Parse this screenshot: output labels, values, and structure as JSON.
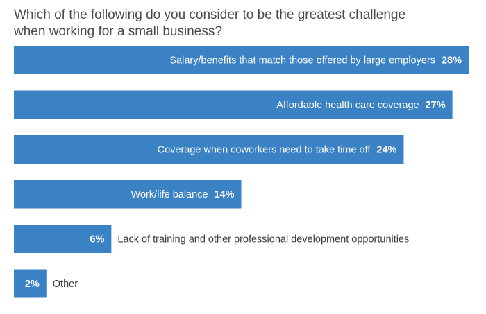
{
  "chart_data": {
    "type": "bar",
    "orientation": "horizontal",
    "title": "Which of the following do you consider to be the greatest challenge when working for a small business?",
    "xlabel": "",
    "ylabel": "",
    "xlim": [
      0,
      28
    ],
    "grid": false,
    "bar_color": "#3b82c4",
    "categories": [
      "Salary/benefits that match those offered by large employers",
      "Affordable health care coverage",
      "Coverage when coworkers need to take time off",
      "Work/life balance",
      "Lack of training and other professional development opportunities",
      "Other"
    ],
    "values": [
      28,
      27,
      24,
      14,
      6,
      2
    ],
    "value_labels": [
      "28%",
      "27%",
      "24%",
      "14%",
      "6%",
      "2%"
    ]
  }
}
